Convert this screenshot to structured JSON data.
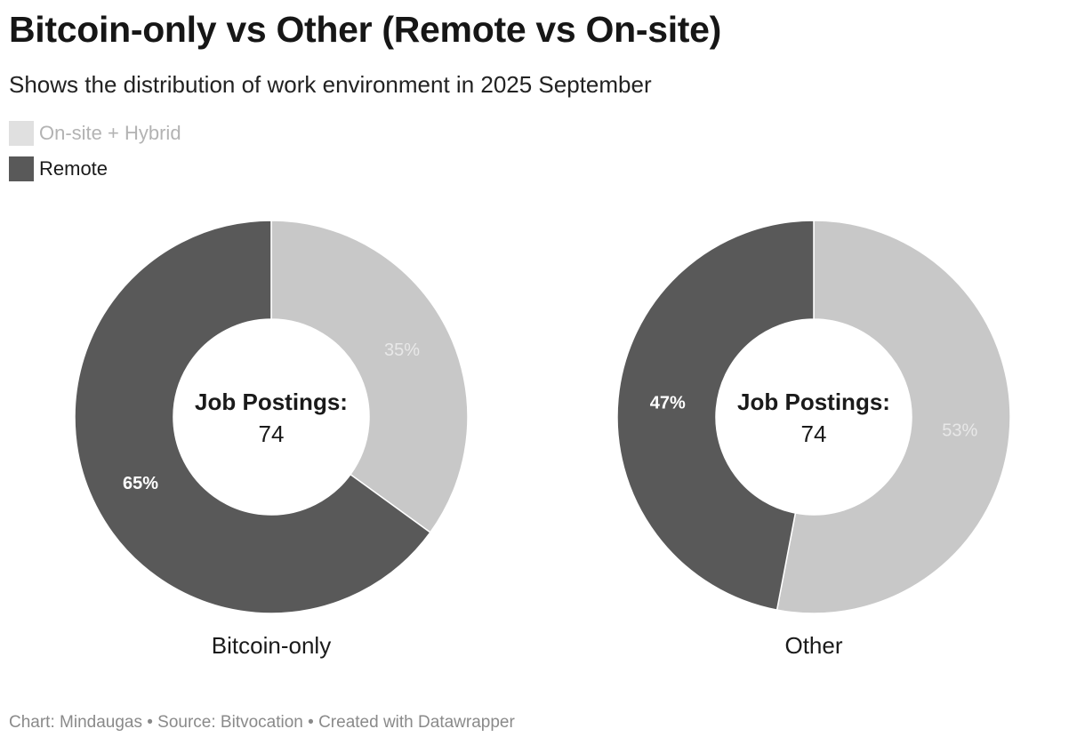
{
  "title": "Bitcoin-only vs Other (Remote vs On-site)",
  "subtitle": "Shows the distribution of work environment in 2025 September",
  "legend": [
    {
      "label": "On-site + Hybrid",
      "color": "#e0e0e0",
      "text_color": "#b3b3b3"
    },
    {
      "label": "Remote",
      "color": "#595959",
      "text_color": "#1a1a1a"
    }
  ],
  "chart_data": [
    {
      "type": "pie",
      "variant": "donut",
      "title": "Bitcoin-only",
      "center_label": "Job Postings:",
      "center_value": "74",
      "slices": [
        {
          "name": "On-site + Hybrid",
          "value": 35,
          "label": "35%",
          "color": "#c8c8c8",
          "label_color": "#e8e8e8",
          "label_bold": false
        },
        {
          "name": "Remote",
          "value": 65,
          "label": "65%",
          "color": "#595959",
          "label_color": "#ffffff",
          "label_bold": true
        }
      ]
    },
    {
      "type": "pie",
      "variant": "donut",
      "title": "Other",
      "center_label": "Job Postings:",
      "center_value": "74",
      "slices": [
        {
          "name": "On-site + Hybrid",
          "value": 53,
          "label": "53%",
          "color": "#c8c8c8",
          "label_color": "#e8e8e8",
          "label_bold": false
        },
        {
          "name": "Remote",
          "value": 47,
          "label": "47%",
          "color": "#595959",
          "label_color": "#ffffff",
          "label_bold": true
        }
      ]
    }
  ],
  "footer": "Chart: Mindaugas • Source: Bitvocation • Created with Datawrapper"
}
